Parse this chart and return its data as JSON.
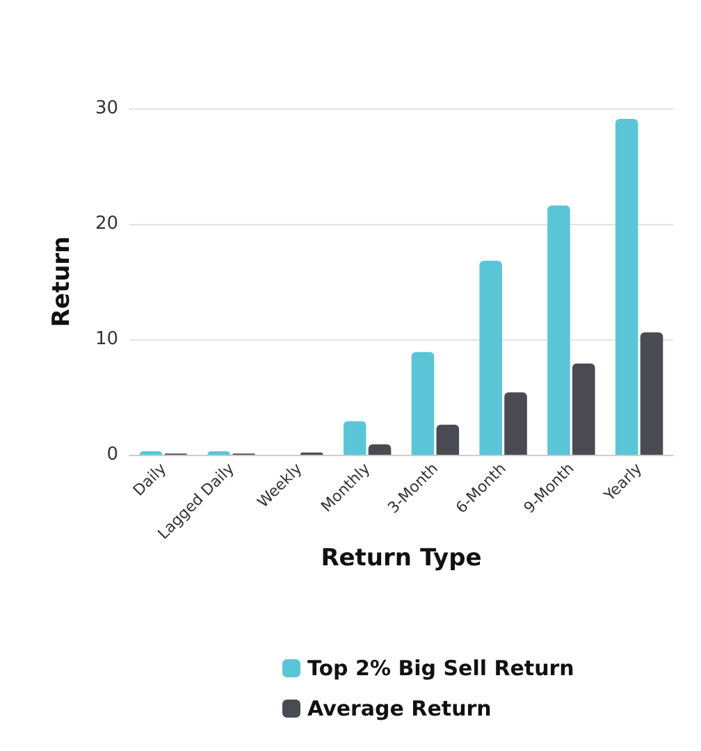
{
  "chart_data": {
    "type": "bar",
    "xlabel": "Return Type",
    "ylabel": "Return",
    "categories": [
      "Daily",
      "Lagged Daily",
      "Weekly",
      "Monthly",
      "3-Month",
      "6-Month",
      "9-Month",
      "Yearly"
    ],
    "series": [
      {
        "name": "Top 2% Big Sell Return",
        "color": "#5bc5d8",
        "values": [
          0.3,
          0.3,
          0,
          2.9,
          8.9,
          16.8,
          21.6,
          29.1
        ]
      },
      {
        "name": "Average Return",
        "color": "#4a4a52",
        "values": [
          0.1,
          0.1,
          0.2,
          0.9,
          2.6,
          5.4,
          7.9,
          10.6
        ]
      }
    ],
    "ylim": [
      0,
      30
    ],
    "yticks": [
      0,
      10,
      20,
      30
    ],
    "grid": "y",
    "legend": "bottom"
  }
}
